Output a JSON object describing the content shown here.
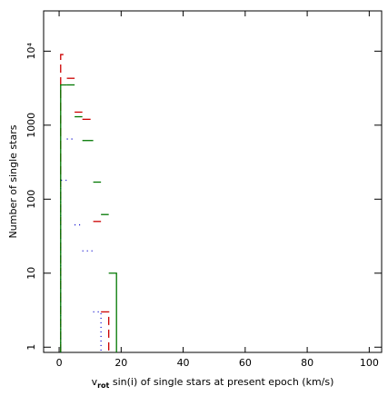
{
  "chart_data": {
    "type": "histogram",
    "x_label": [
      "v",
      "rot",
      " sin(i) of single stars at present epoch (km/s)"
    ],
    "y_label": "Number of single stars",
    "bins": [
      0.5,
      2.5,
      5,
      7.5,
      11,
      13.5,
      16,
      18.5
    ],
    "series": [
      {
        "color": "#cc0000",
        "dash": "9,5",
        "values": [
          9000,
          4300,
          1500,
          1200,
          50,
          3,
          null
        ]
      },
      {
        "color": "#0000cc",
        "dash": "1,4",
        "values": [
          180,
          650,
          45,
          20,
          3,
          null,
          null
        ]
      },
      {
        "color": "#007700",
        "dash": "none",
        "values": [
          3500,
          3500,
          1300,
          620,
          170,
          62,
          10
        ]
      }
    ],
    "xlim": [
      -5,
      104
    ],
    "xticks": [
      0,
      20,
      40,
      60,
      80,
      100
    ],
    "ylim": [
      0.85,
      35000
    ],
    "log_y": true,
    "yticks": [
      1,
      10,
      100,
      1000,
      {
        "value": 10000,
        "label": "10⁴"
      }
    ]
  }
}
